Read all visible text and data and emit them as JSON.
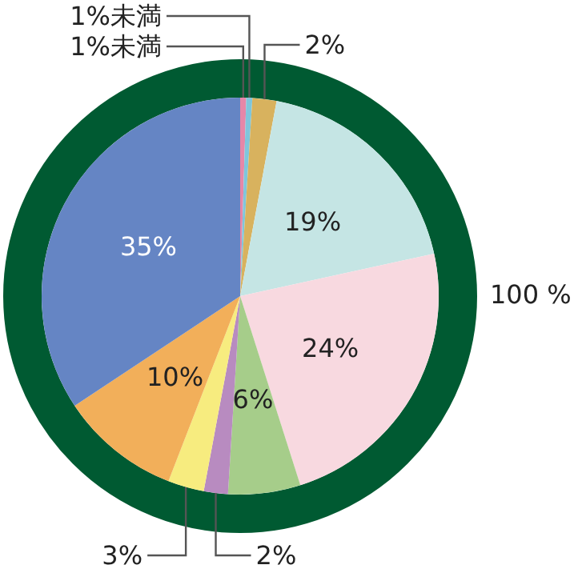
{
  "chart_data": {
    "type": "pie",
    "categories": [
      null,
      null,
      null,
      null,
      null,
      null,
      null,
      null,
      null,
      null
    ],
    "values": [
      0.5,
      0.5,
      2,
      19,
      24,
      6,
      2,
      3,
      10,
      35
    ],
    "colors": [
      "#e687a8",
      "#7fc6dc",
      "#d8b25e",
      "#c5e5e4",
      "#f8d9e0",
      "#a6cd8a",
      "#b88bc0",
      "#f7ec7f",
      "#f2af5a",
      "#6585c4"
    ],
    "value_labels": [
      "1%未満",
      "1%未満",
      "2%",
      "19%",
      "24%",
      "6%",
      "2%",
      "3%",
      "10%",
      "35%"
    ],
    "annotations": [
      "100 %"
    ]
  }
}
